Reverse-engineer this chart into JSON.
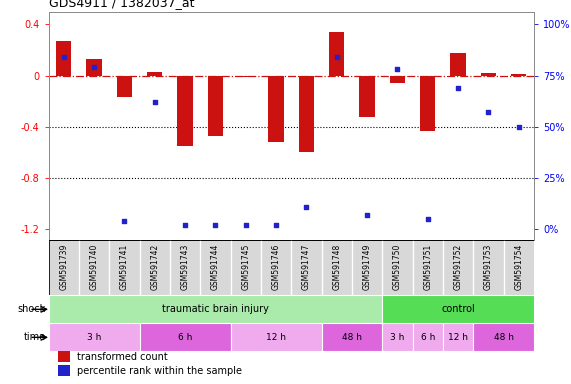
{
  "title": "GDS4911 / 1382037_at",
  "samples": [
    "GSM591739",
    "GSM591740",
    "GSM591741",
    "GSM591742",
    "GSM591743",
    "GSM591744",
    "GSM591745",
    "GSM591746",
    "GSM591747",
    "GSM591748",
    "GSM591749",
    "GSM591750",
    "GSM591751",
    "GSM591752",
    "GSM591753",
    "GSM591754"
  ],
  "transformed_count": [
    0.27,
    0.13,
    -0.17,
    0.03,
    -0.55,
    -0.47,
    -0.01,
    -0.52,
    -0.6,
    0.34,
    -0.32,
    -0.06,
    -0.43,
    0.18,
    0.02,
    0.01
  ],
  "percentile_rank": [
    84,
    79,
    4,
    62,
    2,
    2,
    2,
    2,
    11,
    84,
    7,
    78,
    5,
    69,
    57,
    50
  ],
  "ylim": [
    -1.28,
    0.5
  ],
  "yticks_left": [
    -1.2,
    -0.8,
    -0.4,
    0.0,
    0.4
  ],
  "yticks_right": [
    0,
    25,
    50,
    75,
    100
  ],
  "bar_color": "#cc1111",
  "point_color": "#2222cc",
  "shock_groups": [
    {
      "label": "traumatic brain injury",
      "start": 0,
      "end": 11,
      "color": "#aaeaaa"
    },
    {
      "label": "control",
      "start": 11,
      "end": 16,
      "color": "#55dd55"
    }
  ],
  "time_groups": [
    {
      "label": "3 h",
      "start": 0,
      "end": 3,
      "color": "#f0aaee"
    },
    {
      "label": "6 h",
      "start": 3,
      "end": 6,
      "color": "#dd66dd"
    },
    {
      "label": "12 h",
      "start": 6,
      "end": 9,
      "color": "#f0aaee"
    },
    {
      "label": "48 h",
      "start": 9,
      "end": 11,
      "color": "#dd66dd"
    },
    {
      "label": "3 h",
      "start": 11,
      "end": 12,
      "color": "#f0aaee"
    },
    {
      "label": "6 h",
      "start": 12,
      "end": 13,
      "color": "#f0aaee"
    },
    {
      "label": "12 h",
      "start": 13,
      "end": 14,
      "color": "#f0aaee"
    },
    {
      "label": "48 h",
      "start": 14,
      "end": 16,
      "color": "#dd66dd"
    }
  ],
  "shock_label": "shock",
  "time_label": "time",
  "legend_items": [
    {
      "label": "transformed count",
      "color": "#cc1111"
    },
    {
      "label": "percentile rank within the sample",
      "color": "#2222cc"
    }
  ],
  "bg_color": "#d8d8d8",
  "fig_bg": "#ffffff"
}
